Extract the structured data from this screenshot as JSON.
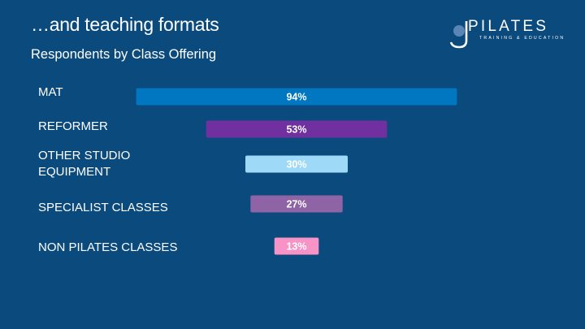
{
  "slide": {
    "title": "…and teaching formats",
    "subtitle": "Respondents by Class Offering"
  },
  "logo": {
    "word": "PILATES",
    "tagline": "TRAINING & EDUCATION",
    "icon": "j-logo-mark"
  },
  "chart_data": {
    "type": "bar",
    "orientation": "horizontal",
    "title": "Respondents by Class Offering",
    "categories": [
      "MAT",
      "REFORMER",
      "OTHER STUDIO EQUIPMENT",
      "SPECIALIST CLASSES",
      "NON PILATES CLASSES"
    ],
    "values": [
      94,
      53,
      30,
      27,
      13
    ],
    "value_labels": [
      "94%",
      "53%",
      "30%",
      "27%",
      "13%"
    ],
    "unit": "%",
    "colors": [
      "#0077c0",
      "#7030a0",
      "#9ed9f7",
      "#8e64a6",
      "#f793c6"
    ],
    "bar_alignment": "centered",
    "grid": false,
    "legend": "none"
  }
}
